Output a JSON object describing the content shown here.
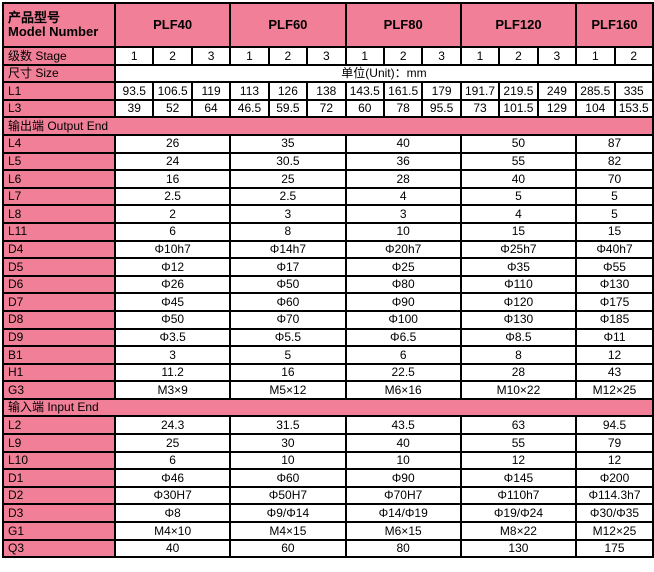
{
  "colors": {
    "pink": "#F07F97",
    "border": "#000000",
    "cell_bg": "#FFFFFF"
  },
  "table": {
    "header": {
      "label_line1": "产品型号",
      "label_line2": "Model Number",
      "models": [
        {
          "name": "PLF40",
          "stages": 3
        },
        {
          "name": "PLF60",
          "stages": 3
        },
        {
          "name": "PLF80",
          "stages": 3
        },
        {
          "name": "PLF120",
          "stages": 3
        },
        {
          "name": "PLF160",
          "stages": 2
        }
      ]
    },
    "stage_row": {
      "label": "级数  Stage",
      "values": [
        "1",
        "2",
        "3",
        "1",
        "2",
        "3",
        "1",
        "2",
        "3",
        "1",
        "2",
        "3",
        "1",
        "2"
      ]
    },
    "size_row": {
      "label": "尺寸  Size",
      "unit_text": "单位(Unit)：mm"
    },
    "dimension_rows": [
      {
        "label": "L1",
        "values": [
          "93.5",
          "106.5",
          "119",
          "113",
          "126",
          "138",
          "143.5",
          "161.5",
          "179",
          "191.7",
          "219.5",
          "249",
          "285.5",
          "335"
        ]
      },
      {
        "label": "L3",
        "values": [
          "39",
          "52",
          "64",
          "46.5",
          "59.5",
          "72",
          "60",
          "78",
          "95.5",
          "73",
          "101.5",
          "129",
          "104",
          "153.5"
        ]
      }
    ],
    "sections": [
      {
        "title": "输出端 Output End",
        "rows": [
          {
            "label": "L4",
            "values": [
              "26",
              "35",
              "40",
              "50",
              "87"
            ]
          },
          {
            "label": "L5",
            "values": [
              "24",
              "30.5",
              "36",
              "55",
              "82"
            ]
          },
          {
            "label": "L6",
            "values": [
              "16",
              "25",
              "28",
              "40",
              "70"
            ]
          },
          {
            "label": "L7",
            "values": [
              "2.5",
              "2.5",
              "4",
              "5",
              "5"
            ]
          },
          {
            "label": "L8",
            "values": [
              "2",
              "3",
              "3",
              "4",
              "5"
            ]
          },
          {
            "label": "L11",
            "values": [
              "6",
              "8",
              "10",
              "15",
              "15"
            ]
          },
          {
            "label": "D4",
            "values": [
              "Φ10h7",
              "Φ14h7",
              "Φ20h7",
              "Φ25h7",
              "Φ40h7"
            ]
          },
          {
            "label": "D5",
            "values": [
              "Φ12",
              "Φ17",
              "Φ25",
              "Φ35",
              "Φ55"
            ]
          },
          {
            "label": "D6",
            "values": [
              "Φ26",
              "Φ50",
              "Φ80",
              "Φ110",
              "Φ130"
            ]
          },
          {
            "label": "D7",
            "values": [
              "Φ45",
              "Φ60",
              "Φ90",
              "Φ120",
              "Φ175"
            ]
          },
          {
            "label": "D8",
            "values": [
              "Φ50",
              "Φ70",
              "Φ100",
              "Φ130",
              "Φ185"
            ]
          },
          {
            "label": "D9",
            "values": [
              "Φ3.5",
              "Φ5.5",
              "Φ6.5",
              "Φ8.5",
              "Φ11"
            ]
          },
          {
            "label": "B1",
            "values": [
              "3",
              "5",
              "6",
              "8",
              "12"
            ]
          },
          {
            "label": "H1",
            "values": [
              "11.2",
              "16",
              "22.5",
              "28",
              "43"
            ]
          },
          {
            "label": "G3",
            "values": [
              "M3×9",
              "M5×12",
              "M6×16",
              "M10×22",
              "M12×25"
            ]
          }
        ]
      },
      {
        "title": "输入端 Input End",
        "rows": [
          {
            "label": "L2",
            "values": [
              "24.3",
              "31.5",
              "43.5",
              "63",
              "94.5"
            ]
          },
          {
            "label": "L9",
            "values": [
              "25",
              "30",
              "40",
              "55",
              "79"
            ]
          },
          {
            "label": "L10",
            "values": [
              "6",
              "10",
              "10",
              "12",
              "12"
            ]
          },
          {
            "label": "D1",
            "values": [
              "Φ46",
              "Φ60",
              "Φ90",
              "Φ145",
              "Φ200"
            ]
          },
          {
            "label": "D2",
            "values": [
              "Φ30H7",
              "Φ50H7",
              "Φ70H7",
              "Φ110h7",
              "Φ114.3h7"
            ]
          },
          {
            "label": "D3",
            "values": [
              "Φ8",
              "Φ9/Φ14",
              "Φ14/Φ19",
              "Φ19/Φ24",
              "Φ30/Φ35"
            ]
          },
          {
            "label": "G1",
            "values": [
              "M4×10",
              "M4×15",
              "M6×15",
              "M8×22",
              "M12×25"
            ]
          },
          {
            "label": "Q3",
            "values": [
              "40",
              "60",
              "80",
              "130",
              "175"
            ]
          }
        ]
      }
    ]
  }
}
